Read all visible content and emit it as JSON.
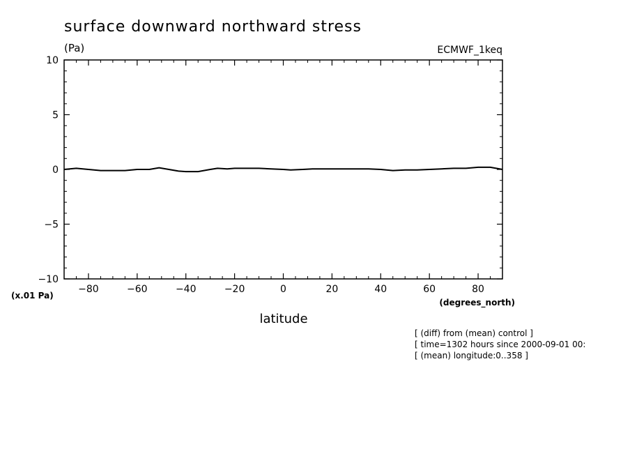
{
  "chart_data": {
    "type": "line",
    "title": "surface downward northward stress",
    "ylabel_unit": "(Pa)",
    "y_scale_label": "(x.01 Pa)",
    "model_label": "ECMWF_1keq",
    "xlabel": "latitude",
    "xlabel_unit": "(degrees_north)",
    "xlim": [
      -90,
      90
    ],
    "ylim": [
      -10,
      10
    ],
    "x_ticks": [
      -80,
      -60,
      -40,
      -20,
      0,
      20,
      40,
      60,
      80
    ],
    "y_ticks": [
      -10,
      -5,
      0,
      5,
      10
    ],
    "x_tick_labels": [
      "−80",
      "−60",
      "−40",
      "−20",
      "0",
      "20",
      "40",
      "60",
      "80"
    ],
    "y_tick_labels": [
      "−10",
      "−5",
      "0",
      "5",
      "10"
    ],
    "series": [
      {
        "name": "diff from control",
        "x": [
          -90,
          -85,
          -80,
          -75,
          -70,
          -65,
          -60,
          -55,
          -51,
          -47,
          -43,
          -40,
          -35,
          -30,
          -27,
          -23,
          -20,
          -15,
          -10,
          -5,
          0,
          3,
          8,
          12,
          20,
          30,
          35,
          40,
          45,
          50,
          55,
          60,
          65,
          70,
          75,
          80,
          85,
          90
        ],
        "values": [
          0.0,
          0.1,
          0.0,
          -0.1,
          -0.1,
          -0.1,
          0.0,
          0.0,
          0.15,
          0.0,
          -0.15,
          -0.2,
          -0.2,
          0.0,
          0.1,
          0.05,
          0.1,
          0.1,
          0.1,
          0.05,
          0.0,
          -0.05,
          0.0,
          0.05,
          0.05,
          0.05,
          0.05,
          0.0,
          -0.1,
          -0.05,
          -0.05,
          0.0,
          0.05,
          0.1,
          0.1,
          0.2,
          0.2,
          0.0
        ]
      }
    ]
  },
  "notes": [
    "[ (diff) from (mean) control ]",
    "[ time=1302 hours since 2000-09-01 00:",
    "[ (mean) longitude:0..358 ]"
  ]
}
